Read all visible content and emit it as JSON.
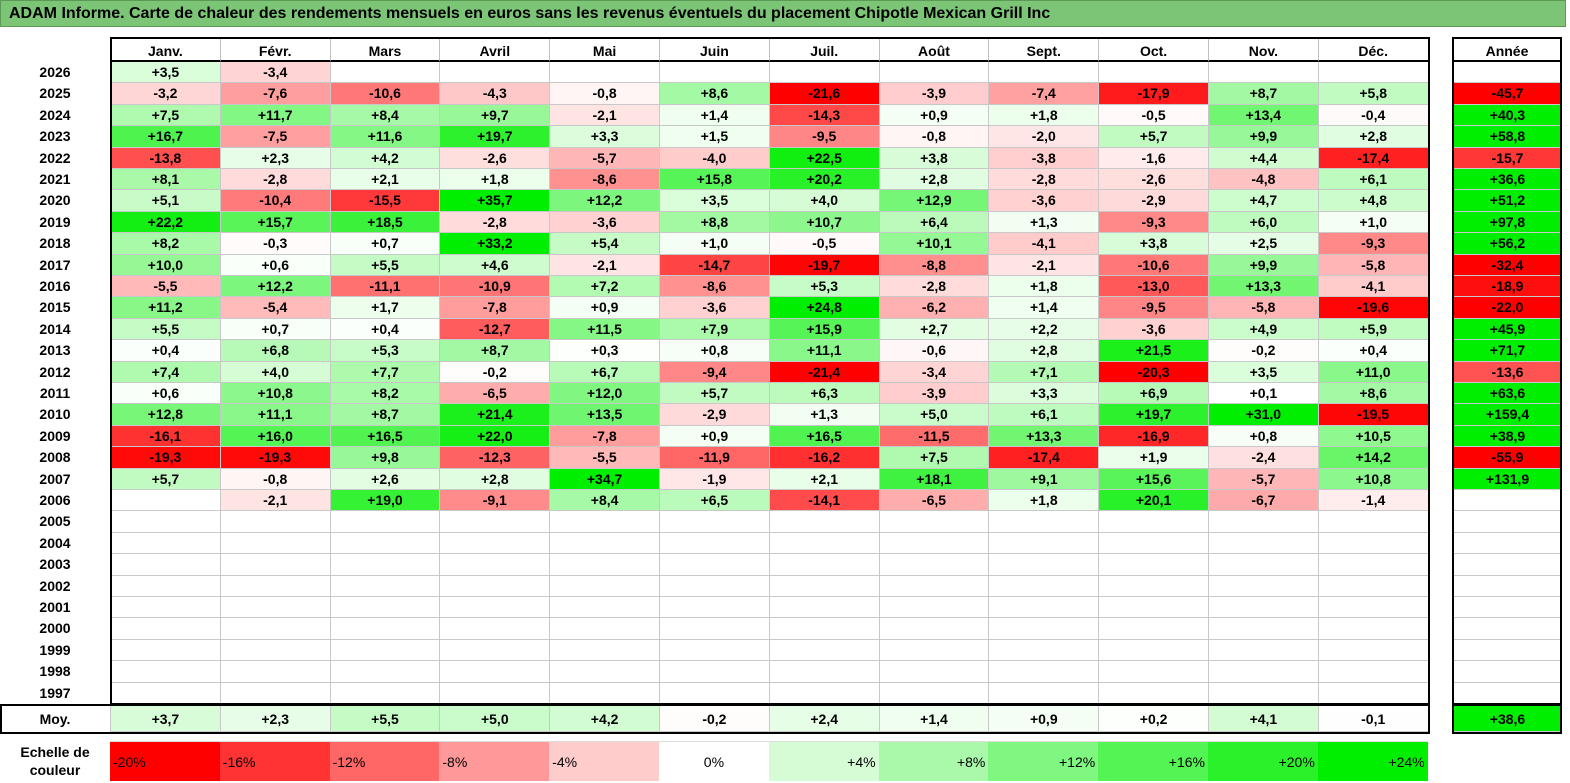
{
  "title": "ADAM Informe. Carte de chaleur des rendements mensuels en euros sans les revenus éventuels du placement Chipotle Mexican Grill Inc",
  "chart_data": {
    "type": "heatmap",
    "months": [
      "Janv.",
      "Févr.",
      "Mars",
      "Avril",
      "Mai",
      "Juin",
      "Juil.",
      "Août",
      "Sept.",
      "Oct.",
      "Nov.",
      "Déc."
    ],
    "year_header": "Année",
    "rows": [
      {
        "year": "2026",
        "values": [
          "+3,5",
          "-3,4",
          "",
          "",
          "",
          "",
          "",
          "",
          "",
          "",
          "",
          ""
        ],
        "annual": ""
      },
      {
        "year": "2025",
        "values": [
          "-3,2",
          "-7,6",
          "-10,6",
          "-4,3",
          "-0,8",
          "+8,6",
          "-21,6",
          "-3,9",
          "-7,4",
          "-17,9",
          "+8,7",
          "+5,8"
        ],
        "annual": "-45,7"
      },
      {
        "year": "2024",
        "values": [
          "+7,5",
          "+11,7",
          "+8,4",
          "+9,7",
          "-2,1",
          "+1,4",
          "-14,3",
          "+0,9",
          "+1,8",
          "-0,5",
          "+13,4",
          "-0,4"
        ],
        "annual": "+40,3"
      },
      {
        "year": "2023",
        "values": [
          "+16,7",
          "-7,5",
          "+11,6",
          "+19,7",
          "+3,3",
          "+1,5",
          "-9,5",
          "-0,8",
          "-2,0",
          "+5,7",
          "+9,9",
          "+2,8"
        ],
        "annual": "+58,8"
      },
      {
        "year": "2022",
        "values": [
          "-13,8",
          "+2,3",
          "+4,2",
          "-2,6",
          "-5,7",
          "-4,0",
          "+22,5",
          "+3,8",
          "-3,8",
          "-1,6",
          "+4,4",
          "-17,4"
        ],
        "annual": "-15,7"
      },
      {
        "year": "2021",
        "values": [
          "+8,1",
          "-2,8",
          "+2,1",
          "+1,8",
          "-8,6",
          "+15,8",
          "+20,2",
          "+2,8",
          "-2,8",
          "-2,6",
          "-4,8",
          "+6,1"
        ],
        "annual": "+36,6"
      },
      {
        "year": "2020",
        "values": [
          "+5,1",
          "-10,4",
          "-15,5",
          "+35,7",
          "+12,2",
          "+3,5",
          "+4,0",
          "+12,9",
          "-3,6",
          "-2,9",
          "+4,7",
          "+4,8"
        ],
        "annual": "+51,2"
      },
      {
        "year": "2019",
        "values": [
          "+22,2",
          "+15,7",
          "+18,5",
          "-2,8",
          "-3,6",
          "+8,8",
          "+10,7",
          "+6,4",
          "+1,3",
          "-9,3",
          "+6,0",
          "+1,0"
        ],
        "annual": "+97,8"
      },
      {
        "year": "2018",
        "values": [
          "+8,2",
          "-0,3",
          "+0,7",
          "+33,2",
          "+5,4",
          "+1,0",
          "-0,5",
          "+10,1",
          "-4,1",
          "+3,8",
          "+2,5",
          "-9,3"
        ],
        "annual": "+56,2"
      },
      {
        "year": "2017",
        "values": [
          "+10,0",
          "+0,6",
          "+5,5",
          "+4,6",
          "-2,1",
          "-14,7",
          "-19,7",
          "-8,8",
          "-2,1",
          "-10,6",
          "+9,9",
          "-5,8"
        ],
        "annual": "-32,4"
      },
      {
        "year": "2016",
        "values": [
          "-5,5",
          "+12,2",
          "-11,1",
          "-10,9",
          "+7,2",
          "-8,6",
          "+5,3",
          "-2,8",
          "+1,8",
          "-13,0",
          "+13,3",
          "-4,1"
        ],
        "annual": "-18,9"
      },
      {
        "year": "2015",
        "values": [
          "+11,2",
          "-5,4",
          "+1,7",
          "-7,8",
          "+0,9",
          "-3,6",
          "+24,8",
          "-6,2",
          "+1,4",
          "-9,5",
          "-5,8",
          "-19,6"
        ],
        "annual": "-22,0"
      },
      {
        "year": "2014",
        "values": [
          "+5,5",
          "+0,7",
          "+0,4",
          "-12,7",
          "+11,5",
          "+7,9",
          "+15,9",
          "+2,7",
          "+2,2",
          "-3,6",
          "+4,9",
          "+5,9"
        ],
        "annual": "+45,9"
      },
      {
        "year": "2013",
        "values": [
          "+0,4",
          "+6,8",
          "+5,3",
          "+8,7",
          "+0,3",
          "+0,8",
          "+11,1",
          "-0,6",
          "+2,8",
          "+21,5",
          "-0,2",
          "+0,4"
        ],
        "annual": "+71,7"
      },
      {
        "year": "2012",
        "values": [
          "+7,4",
          "+4,0",
          "+7,7",
          "-0,2",
          "+6,7",
          "-9,4",
          "-21,4",
          "-3,4",
          "+7,1",
          "-20,3",
          "+3,5",
          "+11,0"
        ],
        "annual": "-13,6"
      },
      {
        "year": "2011",
        "values": [
          "+0,6",
          "+10,8",
          "+8,2",
          "-6,5",
          "+12,0",
          "+5,7",
          "+6,3",
          "-3,9",
          "+3,3",
          "+6,9",
          "+0,1",
          "+8,6"
        ],
        "annual": "+63,6"
      },
      {
        "year": "2010",
        "values": [
          "+12,8",
          "+11,1",
          "+8,7",
          "+21,4",
          "+13,5",
          "-2,9",
          "+1,3",
          "+5,0",
          "+6,1",
          "+19,7",
          "+31,0",
          "-19,5"
        ],
        "annual": "+159,4"
      },
      {
        "year": "2009",
        "values": [
          "-16,1",
          "+16,0",
          "+16,5",
          "+22,0",
          "-7,8",
          "+0,9",
          "+16,5",
          "-11,5",
          "+13,3",
          "-16,9",
          "+0,8",
          "+10,5"
        ],
        "annual": "+38,9"
      },
      {
        "year": "2008",
        "values": [
          "-19,3",
          "-19,3",
          "+9,8",
          "-12,3",
          "-5,5",
          "-11,9",
          "-16,2",
          "+7,5",
          "-17,4",
          "+1,9",
          "-2,4",
          "+14,2"
        ],
        "annual": "-55,9"
      },
      {
        "year": "2007",
        "values": [
          "+5,7",
          "-0,8",
          "+2,6",
          "+2,8",
          "+34,7",
          "-1,9",
          "+2,1",
          "+18,1",
          "+9,1",
          "+15,6",
          "-5,7",
          "+10,8"
        ],
        "annual": "+131,9"
      },
      {
        "year": "2006",
        "values": [
          "",
          "-2,1",
          "+19,0",
          "-9,1",
          "+8,4",
          "+6,5",
          "-14,1",
          "-6,5",
          "+1,8",
          "+20,1",
          "-6,7",
          "-1,4"
        ],
        "annual": ""
      },
      {
        "year": "2005",
        "values": [
          "",
          "",
          "",
          "",
          "",
          "",
          "",
          "",
          "",
          "",
          "",
          ""
        ],
        "annual": ""
      },
      {
        "year": "2004",
        "values": [
          "",
          "",
          "",
          "",
          "",
          "",
          "",
          "",
          "",
          "",
          "",
          ""
        ],
        "annual": ""
      },
      {
        "year": "2003",
        "values": [
          "",
          "",
          "",
          "",
          "",
          "",
          "",
          "",
          "",
          "",
          "",
          ""
        ],
        "annual": ""
      },
      {
        "year": "2002",
        "values": [
          "",
          "",
          "",
          "",
          "",
          "",
          "",
          "",
          "",
          "",
          "",
          ""
        ],
        "annual": ""
      },
      {
        "year": "2001",
        "values": [
          "",
          "",
          "",
          "",
          "",
          "",
          "",
          "",
          "",
          "",
          "",
          ""
        ],
        "annual": ""
      },
      {
        "year": "2000",
        "values": [
          "",
          "",
          "",
          "",
          "",
          "",
          "",
          "",
          "",
          "",
          "",
          ""
        ],
        "annual": ""
      },
      {
        "year": "1999",
        "values": [
          "",
          "",
          "",
          "",
          "",
          "",
          "",
          "",
          "",
          "",
          "",
          ""
        ],
        "annual": ""
      },
      {
        "year": "1998",
        "values": [
          "",
          "",
          "",
          "",
          "",
          "",
          "",
          "",
          "",
          "",
          "",
          ""
        ],
        "annual": ""
      },
      {
        "year": "1997",
        "values": [
          "",
          "",
          "",
          "",
          "",
          "",
          "",
          "",
          "",
          "",
          "",
          ""
        ],
        "annual": ""
      }
    ],
    "average": {
      "label": "Moy.",
      "values": [
        "+3,7",
        "+2,3",
        "+5,5",
        "+5,0",
        "+4,2",
        "-0,2",
        "+2,4",
        "+1,4",
        "+0,9",
        "+0,2",
        "+4,1",
        "-0,1"
      ],
      "annual": "+38,6"
    },
    "scale": {
      "label": "Echelle de couleur",
      "stops": [
        "-20%",
        "-16%",
        "-12%",
        "-8%",
        "-4%",
        "0%",
        "+4%",
        "+8%",
        "+12%",
        "+16%",
        "+20%",
        "+24%"
      ]
    },
    "colors": {
      "negative": "#ff0000",
      "positive": "#00ee00",
      "neutral": "#ffffff",
      "title_bar": "#7cc576"
    }
  }
}
